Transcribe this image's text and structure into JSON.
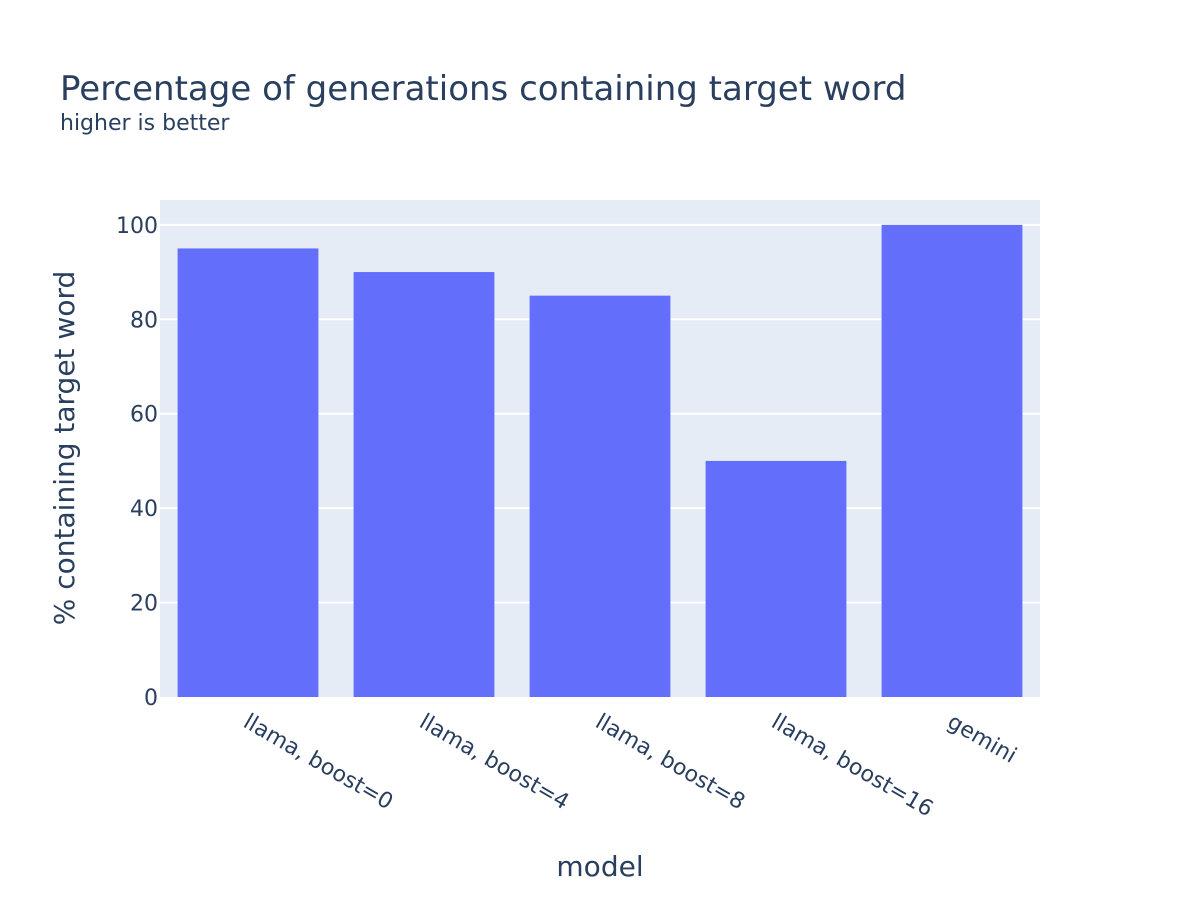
{
  "chart_data": {
    "type": "bar",
    "title": "Percentage of generations containing target word",
    "subtitle": "higher is better",
    "xlabel": "model",
    "ylabel": "% containing target word",
    "categories": [
      "llama, boost=0",
      "llama, boost=4",
      "llama, boost=8",
      "llama, boost=16",
      "gemini"
    ],
    "values": [
      95,
      90,
      85,
      50,
      100
    ],
    "ylim": [
      0,
      105.26
    ],
    "yticks": [
      0,
      20,
      40,
      60,
      80,
      100
    ],
    "grid": true,
    "legend": "none",
    "colors": {
      "bar": "#636efa",
      "plot_background": "#e5ecf6",
      "gridline": "#ffffff",
      "text": "#2a3f5f"
    }
  }
}
